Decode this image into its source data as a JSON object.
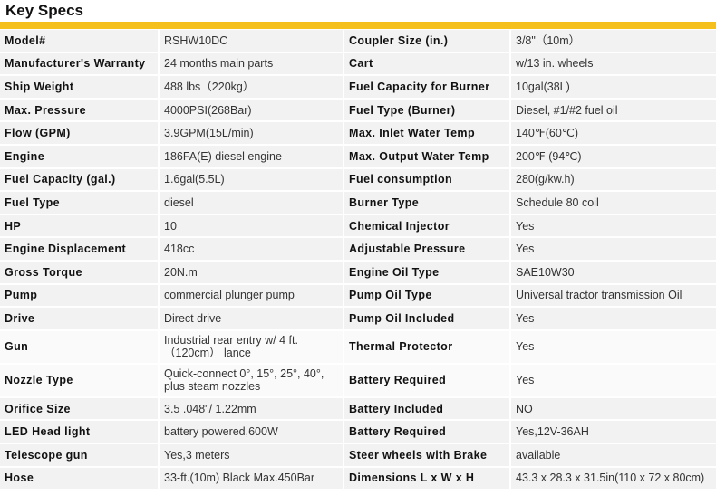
{
  "title": "Key Specs",
  "accent_color": "#f5bf1c",
  "rows": [
    {
      "l1": "Model#",
      "v1": "RSHW10DC",
      "l2": "Coupler Size (in.)",
      "v2": "3/8\"（10m）"
    },
    {
      "l1": "Manufacturer's Warranty",
      "v1": "24 months main parts",
      "l2": "Cart",
      "v2": "w/13 in. wheels"
    },
    {
      "l1": "Ship Weight",
      "v1": "488 lbs（220kg）",
      "l2": "Fuel Capacity for Burner",
      "v2": "10gal(38L)"
    },
    {
      "l1": "Max. Pressure",
      "v1": "4000PSI(268Bar)",
      "l2": "Fuel Type (Burner)",
      "v2": "Diesel, #1/#2 fuel oil"
    },
    {
      "l1": "Flow (GPM)",
      "v1": "3.9GPM(15L/min)",
      "l2": "Max. Inlet Water Temp",
      "v2": "140℉(60℃)"
    },
    {
      "l1": "Engine",
      "v1": "186FA(E) diesel engine",
      "l2": "Max. Output Water Temp",
      "v2": "200℉ (94℃)"
    },
    {
      "l1": "Fuel Capacity (gal.)",
      "v1": "1.6gal(5.5L)",
      "l2": "Fuel consumption",
      "v2": "280(g/kw.h)"
    },
    {
      "l1": "Fuel Type",
      "v1": "diesel",
      "l2": "Burner Type",
      "v2": "Schedule 80 coil"
    },
    {
      "l1": "HP",
      "v1": "10",
      "l2": "Chemical Injector",
      "v2": "Yes"
    },
    {
      "l1": "Engine Displacement",
      "v1": "418cc",
      "l2": "Adjustable Pressure",
      "v2": "Yes"
    },
    {
      "l1": "Gross Torque",
      "v1": "20N.m",
      "l2": "Engine Oil Type",
      "v2": "SAE10W30"
    },
    {
      "l1": "Pump",
      "v1": "commercial plunger pump",
      "l2": "Pump Oil Type",
      "v2": "Universal tractor transmission Oil"
    },
    {
      "l1": "Drive",
      "v1": "Direct drive",
      "l2": "Pump Oil Included",
      "v2": "Yes"
    },
    {
      "l1": "Gun",
      "v1": "Industrial rear entry w/ 4 ft.（120cm） lance",
      "l2": "Thermal Protector",
      "v2": "Yes",
      "tall": true
    },
    {
      "l1": "Nozzle Type",
      "v1": "Quick-connect 0°, 15°, 25°, 40°, plus steam nozzles",
      "l2": "Battery Required",
      "v2": "Yes",
      "tall": true
    },
    {
      "l1": "Orifice Size",
      "v1": "3.5 .048\"/ 1.22mm",
      "l2": "Battery Included",
      "v2": "NO"
    },
    {
      "l1": "LED Head light",
      "v1": "battery powered,600W",
      "l2": "Battery Required",
      "v2": "Yes,12V-36AH"
    },
    {
      "l1": "Telescope gun",
      "v1": "Yes,3 meters",
      "l2": "Steer wheels with Brake",
      "v2": "available"
    },
    {
      "l1": "Hose",
      "v1": "33-ft.(10m) Black Max.450Bar",
      "l2": "Dimensions L x W x H",
      "v2": "43.3 x 28.3 x 31.5in(110 x 72 x 80cm)"
    }
  ]
}
